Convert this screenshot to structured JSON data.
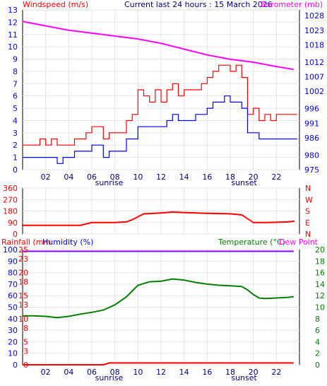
{
  "header": {
    "left": "Windspeed (m/s)",
    "center": "Current last 24 hours : 15 March 2026",
    "right": "Barometer (mb)"
  },
  "panel3_labels": {
    "rainfall": "Rainfall (mm",
    "humidity": "Humidity (%)",
    "temperature": "Temperature (°C)",
    "dewpoint": "Dew Point"
  },
  "sun_labels": {
    "sunrise": "sunrise",
    "sunset": "sunset"
  },
  "colors": {
    "wind_gust": "#ff0000",
    "wind_avg": "#0000ff",
    "barometer": "#ff00ff",
    "direction": "#ff0000",
    "temperature": "#008000",
    "humidity": "#0000ff",
    "dewpoint": "#ff00ff",
    "rainfall": "#ff0000",
    "time_axis": "#000080",
    "axis_red": "#ff0000",
    "axis_blue": "#0000ff",
    "axis_green": "#008000"
  },
  "chart_data": [
    {
      "type": "line",
      "x_ticks": [
        "02",
        "04",
        "06",
        "08",
        "10",
        "12",
        "14",
        "16",
        "18",
        "20",
        "22"
      ],
      "xlim": [
        0,
        24
      ],
      "y_left_ticks": [
        "0",
        "1",
        "2",
        "3",
        "4",
        "5",
        "6",
        "7",
        "8",
        "9",
        "10",
        "11",
        "12",
        "13"
      ],
      "ylim_left": [
        0,
        13
      ],
      "y_right_ticks": [
        "975",
        "980",
        "986",
        "991",
        "996",
        "1002",
        "1007",
        "1012",
        "1018",
        "1023",
        "1028"
      ],
      "ylim_right": [
        975,
        1030
      ],
      "sunrise_hour": 7.5,
      "sunset_hour": 19.2,
      "series": [
        {
          "key": "gust",
          "x": [
            0,
            0.5,
            1,
            1.5,
            2,
            2.5,
            3,
            3.5,
            4,
            4.5,
            5,
            5.5,
            6,
            6.5,
            7,
            7.5,
            8,
            8.5,
            9,
            9.5,
            10,
            10.5,
            11,
            11.5,
            12,
            12.5,
            13,
            13.5,
            14,
            14.5,
            15,
            15.5,
            16,
            16.5,
            17,
            17.5,
            18,
            18.5,
            19,
            19.5,
            20,
            20.5,
            21,
            21.5,
            22,
            22.5,
            23,
            23.5
          ],
          "values": [
            2,
            2,
            2,
            2.5,
            2,
            2.5,
            2,
            2,
            2,
            2.5,
            2.5,
            3,
            3.5,
            3.5,
            2.5,
            3,
            3,
            3,
            4,
            4.5,
            6.5,
            6,
            5.5,
            6.5,
            5.5,
            6.5,
            7,
            6,
            6.5,
            6.5,
            6.5,
            7,
            7.5,
            8,
            8.5,
            8.5,
            8,
            8.5,
            7.5,
            4.5,
            5,
            4,
            4.5,
            4,
            4.5,
            4.5,
            4.5,
            4.5
          ]
        },
        {
          "key": "average",
          "x": [
            0,
            0.5,
            1,
            1.5,
            2,
            2.5,
            3,
            3.5,
            4,
            4.5,
            5,
            5.5,
            6,
            6.5,
            7,
            7.5,
            8,
            8.5,
            9,
            9.5,
            10,
            10.5,
            11,
            11.5,
            12,
            12.5,
            13,
            13.5,
            14,
            14.5,
            15,
            15.5,
            16,
            16.5,
            17,
            17.5,
            18,
            18.5,
            19,
            19.5,
            20,
            20.5,
            21,
            21.5,
            22,
            22.5,
            23,
            23.5
          ],
          "values": [
            1,
            1,
            1,
            1,
            1,
            1,
            0.5,
            1,
            1,
            1.5,
            1.5,
            1.5,
            2,
            2,
            1,
            1.5,
            1.5,
            1.5,
            2.5,
            2.5,
            3.5,
            3.5,
            3.5,
            3.5,
            3.5,
            4,
            4.5,
            4,
            4,
            4,
            4.5,
            4.5,
            5,
            5.5,
            5.5,
            6,
            5.5,
            5.5,
            5,
            3,
            3,
            2.5,
            2.5,
            2.5,
            2.5,
            2.5,
            2.5,
            2.5
          ]
        },
        {
          "key": "barometer",
          "x": [
            0,
            2,
            4,
            6,
            8,
            10,
            12,
            14,
            16,
            18,
            20,
            22,
            23.5
          ],
          "values": [
            1026,
            1024.5,
            1023,
            1022,
            1021,
            1020,
            1018.5,
            1016.5,
            1014.5,
            1013,
            1012,
            1010.5,
            1009.5
          ]
        }
      ]
    },
    {
      "type": "scatter",
      "y_ticks": [
        "0",
        "90",
        "180",
        "270",
        "360"
      ],
      "ylim": [
        0,
        360
      ],
      "compass": [
        "N",
        "W",
        "S",
        "E",
        "N"
      ],
      "x": [
        0,
        1,
        2,
        3,
        4,
        5,
        6,
        7,
        8,
        9,
        9.5,
        10,
        10.5,
        11,
        12,
        13,
        14,
        15,
        16,
        17,
        18,
        19,
        19.5,
        20,
        21,
        22,
        23,
        23.5
      ],
      "values": [
        68,
        68,
        68,
        68,
        68,
        68,
        90,
        90,
        90,
        95,
        112,
        135,
        158,
        160,
        165,
        172,
        168,
        165,
        162,
        160,
        158,
        150,
        120,
        90,
        90,
        92,
        95,
        100
      ]
    },
    {
      "type": "line",
      "y_left_ticks": [
        "0",
        "10",
        "20",
        "30",
        "40",
        "50",
        "60",
        "70",
        "80",
        "90",
        "100"
      ],
      "ylim_left": [
        0,
        100
      ],
      "rain_ticks": [
        "0",
        "3",
        "5",
        "8",
        "10",
        "13",
        "15",
        "18",
        "20",
        "23",
        "25"
      ],
      "ylim_rain": [
        0,
        25
      ],
      "y_right_ticks": [
        "0",
        "2",
        "4",
        "6",
        "8",
        "10",
        "12",
        "14",
        "16",
        "18",
        "20"
      ],
      "ylim_right": [
        0,
        20
      ],
      "series": [
        {
          "key": "temperature",
          "x": [
            0,
            1,
            2,
            3,
            4,
            5,
            6,
            7,
            8,
            9,
            10,
            11,
            12,
            13,
            14,
            15,
            16,
            17,
            18,
            19,
            19.5,
            20,
            20.5,
            21,
            22,
            23,
            23.5
          ],
          "values": [
            8.5,
            8.5,
            8.4,
            8.2,
            8.4,
            8.8,
            9.1,
            9.5,
            10.4,
            11.8,
            13.8,
            14.4,
            14.5,
            14.9,
            14.7,
            14.3,
            14.0,
            13.8,
            13.7,
            13.6,
            13.0,
            12.2,
            11.6,
            11.5,
            11.6,
            11.7,
            11.8
          ]
        },
        {
          "key": "humidity",
          "x": [
            0,
            23.5
          ],
          "values": [
            98.5,
            98.5
          ]
        },
        {
          "key": "dewpoint",
          "x": [
            0,
            23.5
          ],
          "values": [
            98.8,
            98.8
          ]
        },
        {
          "key": "rainfall",
          "x": [
            0,
            7,
            7.5,
            23.5
          ],
          "values": [
            0,
            0,
            0.4,
            0.4
          ]
        }
      ]
    }
  ]
}
